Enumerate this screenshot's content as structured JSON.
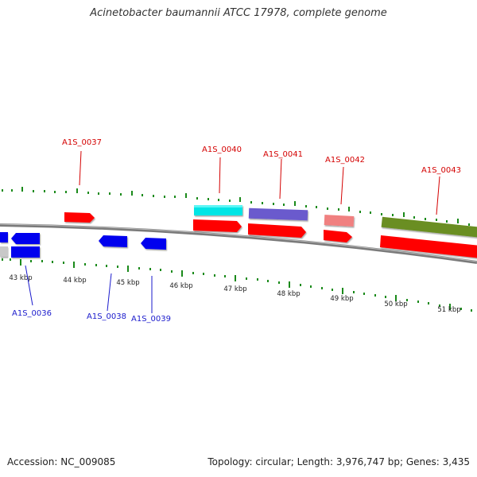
{
  "title": "Acinetobacter baumannii ATCC 17978, complete genome",
  "footer": {
    "accession": "Accession: NC_009085",
    "info": "Topology: circular; Length: 3,976,747 bp; Genes: 3,435"
  },
  "ruler_labels": [
    "43 kbp",
    "44 kbp",
    "45 kbp",
    "46 kbp",
    "47 kbp",
    "48 kbp",
    "49 kbp",
    "50 kbp",
    "51 kbp"
  ],
  "forward_labels": [
    "A1S_0037",
    "A1S_0040",
    "A1S_0041",
    "A1S_0042",
    "A1S_0043"
  ],
  "reverse_labels": [
    "A1S_0036",
    "A1S_0038",
    "A1S_0039"
  ],
  "colors": {
    "forward_label": "#d40000",
    "reverse_label": "#1a1acc",
    "forward_gene": "#ff0000",
    "reverse_gene": "#0000ee",
    "backbone": "#7a7a7a",
    "tick": "#1a8a1a",
    "cds_cyan": "#00e5e5",
    "cds_purple": "#6a5acd",
    "cds_pink": "#f08080",
    "cds_olive": "#6b8e23",
    "cds_grey": "#c8c8c8"
  }
}
